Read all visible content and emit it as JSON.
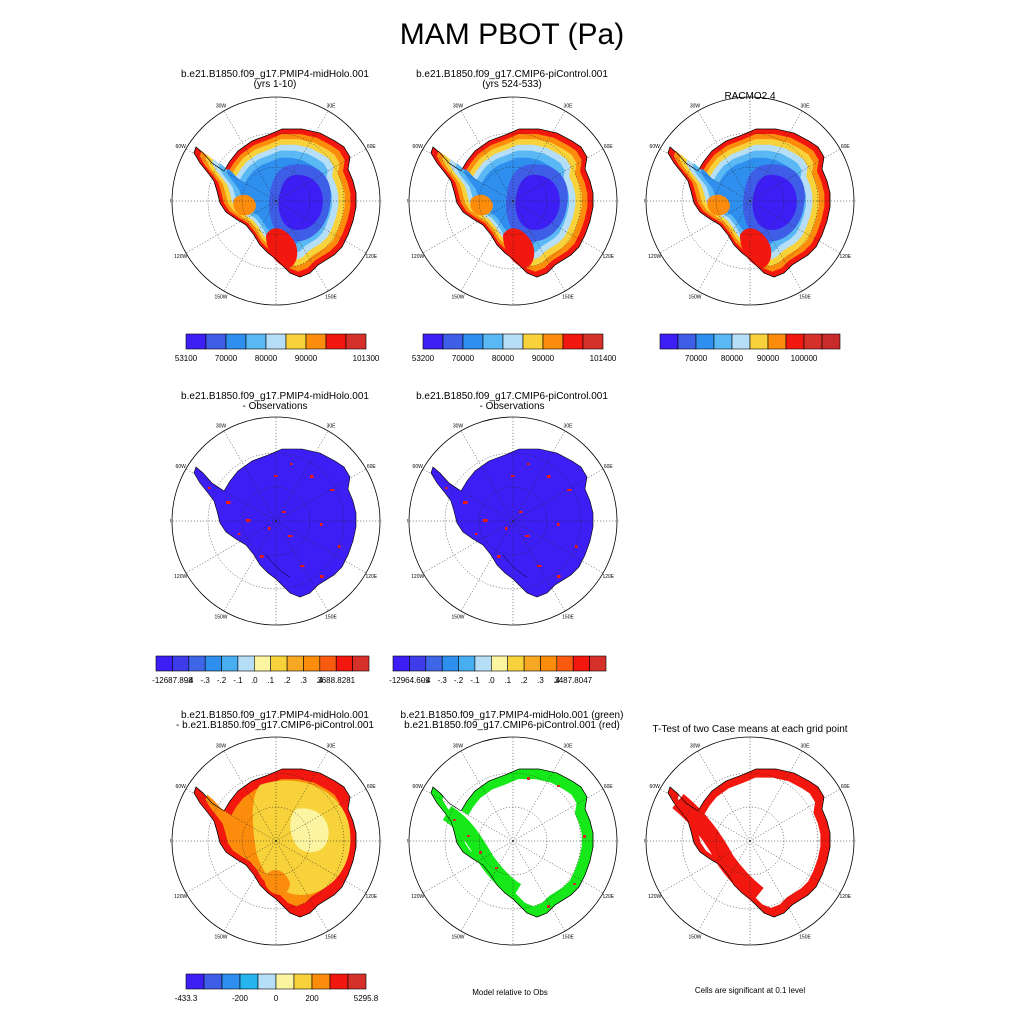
{
  "main_title": "MAM PBOT (Pa)",
  "lon_labels": [
    "0",
    "30E",
    "60E",
    "90E",
    "120E",
    "150E",
    "180",
    "150W",
    "120W",
    "90W",
    "60W",
    "30W"
  ],
  "panels": [
    {
      "title_lines": [
        "b.e21.B1850.f09_g17.PMIP4-midHolo.001",
        "(yrs 1-10)"
      ],
      "fill": "absolute",
      "colorbar": {
        "colors": [
          "#3d1ff5",
          "#3e5ee7",
          "#2f8fef",
          "#5ab9f4",
          "#b6def6",
          "#f7d23a",
          "#fc8c0c",
          "#f2180f",
          "#d5302a"
        ],
        "labels": [
          "53100",
          "70000",
          "80000",
          "90000",
          "101300"
        ],
        "label_positions": [
          0,
          2,
          4,
          6,
          9
        ]
      }
    },
    {
      "title_lines": [
        "b.e21.B1850.f09_g17.CMIP6-piControl.001",
        "(yrs 524-533)"
      ],
      "fill": "absolute",
      "colorbar": {
        "colors": [
          "#3d1ff5",
          "#3e5ee7",
          "#2f8fef",
          "#5ab9f4",
          "#b6def6",
          "#f7d23a",
          "#fc8c0c",
          "#f2180f",
          "#d5302a"
        ],
        "labels": [
          "53200",
          "70000",
          "80000",
          "90000",
          "101400"
        ],
        "label_positions": [
          0,
          2,
          4,
          6,
          9
        ]
      }
    },
    {
      "title_lines": [
        "RACMO2.4"
      ],
      "fill": "absolute",
      "colorbar": {
        "colors": [
          "#3d1ff5",
          "#3e5ee7",
          "#2f8fef",
          "#5ab9f4",
          "#b6def6",
          "#f7d23a",
          "#fc8c0c",
          "#f2180f",
          "#d5302a",
          "#c92a2a"
        ],
        "labels": [
          "70000",
          "80000",
          "90000",
          "100000"
        ],
        "label_positions": [
          2,
          4,
          6,
          8
        ]
      }
    },
    {
      "title_lines": [
        "b.e21.B1850.f09_g17.PMIP4-midHolo.001",
        "- Observations"
      ],
      "fill": "bias",
      "colorbar": {
        "colors": [
          "#3d1ff5",
          "#3e3ce9",
          "#3e66e7",
          "#2f8fef",
          "#47aef2",
          "#b6def6",
          "#fbf5a1",
          "#f7d23a",
          "#f7a823",
          "#fc8c0c",
          "#f85a10",
          "#f2180f",
          "#d5302a"
        ],
        "labels": [
          "-12687.898",
          "-.4",
          "-.3",
          "-.2",
          "-.1",
          ".0",
          ".1",
          ".2",
          ".3",
          ".4",
          "3688.8281"
        ],
        "label_positions": [
          1,
          2,
          3,
          4,
          5,
          6,
          7,
          8,
          9,
          10,
          11
        ]
      }
    },
    {
      "title_lines": [
        "b.e21.B1850.f09_g17.CMIP6-piControl.001",
        "- Observations"
      ],
      "fill": "bias",
      "colorbar": {
        "colors": [
          "#3d1ff5",
          "#3e3ce9",
          "#3e66e7",
          "#2f8fef",
          "#47aef2",
          "#b6def6",
          "#fbf5a1",
          "#f7d23a",
          "#f7a823",
          "#fc8c0c",
          "#f85a10",
          "#f2180f",
          "#d5302a"
        ],
        "labels": [
          "-12964.609",
          "-.4",
          "-.3",
          "-.2",
          "-.1",
          ".0",
          ".1",
          ".2",
          ".3",
          ".4",
          "3487.8047"
        ],
        "label_positions": [
          1,
          2,
          3,
          4,
          5,
          6,
          7,
          8,
          9,
          10,
          11
        ]
      }
    },
    {
      "title_lines": [
        "b.e21.B1850.f09_g17.PMIP4-midHolo.001",
        "- b.e21.B1850.f09_g17.CMIP6-piControl.001"
      ],
      "fill": "diff",
      "colorbar": {
        "colors": [
          "#3d1ff5",
          "#3e5ee7",
          "#2f8fef",
          "#27b5f0",
          "#b6def6",
          "#fbf5a1",
          "#f7d23a",
          "#fc8c0c",
          "#f2180f",
          "#d5302a"
        ],
        "labels": [
          "-433.3",
          "-200",
          "0",
          "200",
          "5295.8"
        ],
        "label_positions": [
          0,
          3,
          5,
          7,
          10
        ]
      }
    },
    {
      "title_lines": [
        "b.e21.B1850.f09_g17.PMIP4-midHolo.001 (green)",
        "b.e21.B1850.f09_g17.CMIP6-piControl.001 (red)"
      ],
      "fill": "ring",
      "note": "Model relative to Obs"
    },
    {
      "title_lines": [
        "T-Test of two Case means at each grid point"
      ],
      "fill": "ttest",
      "note": "Cells are significant at 0.1 level"
    }
  ]
}
